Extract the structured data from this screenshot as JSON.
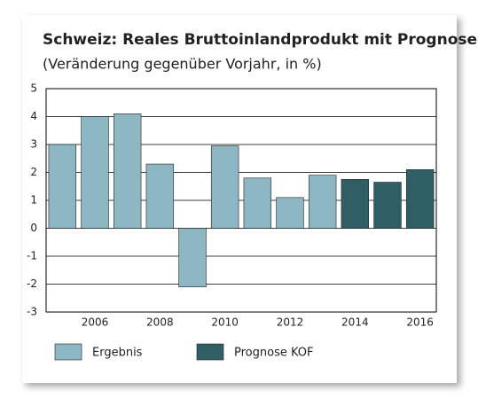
{
  "chart_data": {
    "type": "bar",
    "title": "Schweiz: Reales Bruttoinlandprodukt mit Prognose",
    "subtitle": "(Veränderung gegenüber Vorjahr, in %)",
    "categories": [
      null,
      "2006",
      null,
      "2008",
      null,
      "2010",
      null,
      "2012",
      null,
      "2014",
      null,
      "2016"
    ],
    "series": [
      {
        "name": "Ergebnis",
        "color": "#8db7c3",
        "values": [
          3.0,
          4.0,
          4.1,
          2.3,
          -2.1,
          2.95,
          1.8,
          1.1,
          1.9,
          null,
          null,
          null
        ]
      },
      {
        "name": "Prognose KOF",
        "color": "#2f5e64",
        "values": [
          null,
          null,
          null,
          null,
          null,
          null,
          null,
          null,
          null,
          1.75,
          1.65,
          2.1
        ]
      }
    ],
    "ylim": [
      -3,
      5
    ],
    "yticks": [
      -3,
      -2,
      -1,
      0,
      1,
      2,
      3,
      4,
      5
    ],
    "grid": true
  }
}
